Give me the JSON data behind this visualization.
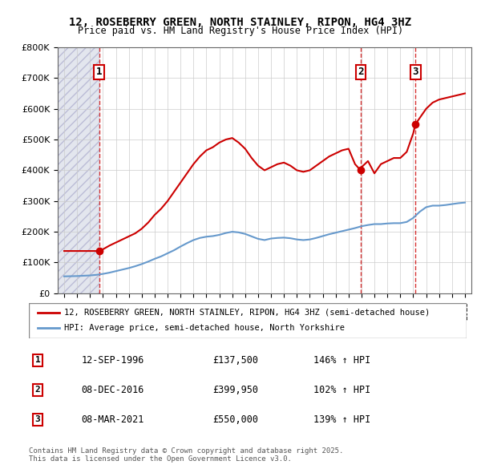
{
  "title": "12, ROSEBERRY GREEN, NORTH STAINLEY, RIPON, HG4 3HZ",
  "subtitle": "Price paid vs. HM Land Registry's House Price Index (HPI)",
  "legend_line1": "12, ROSEBERRY GREEN, NORTH STAINLEY, RIPON, HG4 3HZ (semi-detached house)",
  "legend_line2": "HPI: Average price, semi-detached house, North Yorkshire",
  "footer": "Contains HM Land Registry data © Crown copyright and database right 2025.\nThis data is licensed under the Open Government Licence v3.0.",
  "transactions": [
    {
      "label": "1",
      "date": "12-SEP-1996",
      "price": 137500,
      "hpi_pct": "146% ↑ HPI",
      "year": 1996.7
    },
    {
      "label": "2",
      "date": "08-DEC-2016",
      "price": 399950,
      "hpi_pct": "102% ↑ HPI",
      "year": 2016.93
    },
    {
      "label": "3",
      "date": "08-MAR-2021",
      "price": 550000,
      "hpi_pct": "139% ↑ HPI",
      "year": 2021.18
    }
  ],
  "property_color": "#cc0000",
  "hpi_color": "#6699cc",
  "dashed_line_color": "#cc0000",
  "background_hatch_color": "#d0d8e8",
  "ylim": [
    0,
    800000
  ],
  "xlim": [
    1993.5,
    2025.5
  ],
  "yticks": [
    0,
    100000,
    200000,
    300000,
    400000,
    500000,
    600000,
    700000,
    800000
  ],
  "xticks": [
    1994,
    1995,
    1996,
    1997,
    1998,
    1999,
    2000,
    2001,
    2002,
    2003,
    2004,
    2005,
    2006,
    2007,
    2008,
    2009,
    2010,
    2011,
    2012,
    2013,
    2014,
    2015,
    2016,
    2017,
    2018,
    2019,
    2020,
    2021,
    2022,
    2023,
    2024,
    2025
  ],
  "property_line": {
    "x": [
      1994.0,
      1994.5,
      1995.0,
      1995.5,
      1996.0,
      1996.7,
      1997.0,
      1997.5,
      1998.0,
      1998.5,
      1999.0,
      1999.5,
      2000.0,
      2000.5,
      2001.0,
      2001.5,
      2002.0,
      2002.5,
      2003.0,
      2003.5,
      2004.0,
      2004.5,
      2005.0,
      2005.5,
      2006.0,
      2006.5,
      2007.0,
      2007.5,
      2008.0,
      2008.5,
      2009.0,
      2009.5,
      2010.0,
      2010.5,
      2011.0,
      2011.5,
      2012.0,
      2012.5,
      2013.0,
      2013.5,
      2014.0,
      2014.5,
      2015.0,
      2015.5,
      2016.0,
      2016.5,
      2016.93,
      2017.0,
      2017.5,
      2018.0,
      2018.5,
      2019.0,
      2019.5,
      2020.0,
      2020.5,
      2021.0,
      2021.18,
      2021.5,
      2022.0,
      2022.5,
      2023.0,
      2023.5,
      2024.0,
      2024.5,
      2025.0
    ],
    "y": [
      137500,
      137500,
      137500,
      137500,
      137500,
      137500,
      143000,
      155000,
      165000,
      175000,
      185000,
      195000,
      210000,
      230000,
      255000,
      275000,
      300000,
      330000,
      360000,
      390000,
      420000,
      445000,
      465000,
      475000,
      490000,
      500000,
      505000,
      490000,
      470000,
      440000,
      415000,
      400000,
      410000,
      420000,
      425000,
      415000,
      400000,
      395000,
      400000,
      415000,
      430000,
      445000,
      455000,
      465000,
      470000,
      420000,
      399950,
      410000,
      430000,
      390000,
      420000,
      430000,
      440000,
      440000,
      460000,
      520000,
      550000,
      570000,
      600000,
      620000,
      630000,
      635000,
      640000,
      645000,
      650000
    ]
  },
  "hpi_line": {
    "x": [
      1994.0,
      1994.5,
      1995.0,
      1995.5,
      1996.0,
      1996.5,
      1997.0,
      1997.5,
      1998.0,
      1998.5,
      1999.0,
      1999.5,
      2000.0,
      2000.5,
      2001.0,
      2001.5,
      2002.0,
      2002.5,
      2003.0,
      2003.5,
      2004.0,
      2004.5,
      2005.0,
      2005.5,
      2006.0,
      2006.5,
      2007.0,
      2007.5,
      2008.0,
      2008.5,
      2009.0,
      2009.5,
      2010.0,
      2010.5,
      2011.0,
      2011.5,
      2012.0,
      2012.5,
      2013.0,
      2013.5,
      2014.0,
      2014.5,
      2015.0,
      2015.5,
      2016.0,
      2016.5,
      2017.0,
      2017.5,
      2018.0,
      2018.5,
      2019.0,
      2019.5,
      2020.0,
      2020.5,
      2021.0,
      2021.5,
      2022.0,
      2022.5,
      2023.0,
      2023.5,
      2024.0,
      2024.5,
      2025.0
    ],
    "y": [
      55000,
      55500,
      56000,
      57000,
      58000,
      60000,
      63000,
      67000,
      72000,
      77000,
      82000,
      88000,
      95000,
      103000,
      112000,
      120000,
      130000,
      140000,
      152000,
      163000,
      173000,
      180000,
      184000,
      186000,
      190000,
      196000,
      200000,
      198000,
      193000,
      185000,
      177000,
      173000,
      178000,
      180000,
      181000,
      179000,
      175000,
      173000,
      175000,
      180000,
      186000,
      192000,
      197000,
      202000,
      207000,
      212000,
      218000,
      222000,
      225000,
      225000,
      227000,
      228000,
      228000,
      232000,
      245000,
      265000,
      280000,
      285000,
      285000,
      287000,
      290000,
      293000,
      295000
    ]
  }
}
